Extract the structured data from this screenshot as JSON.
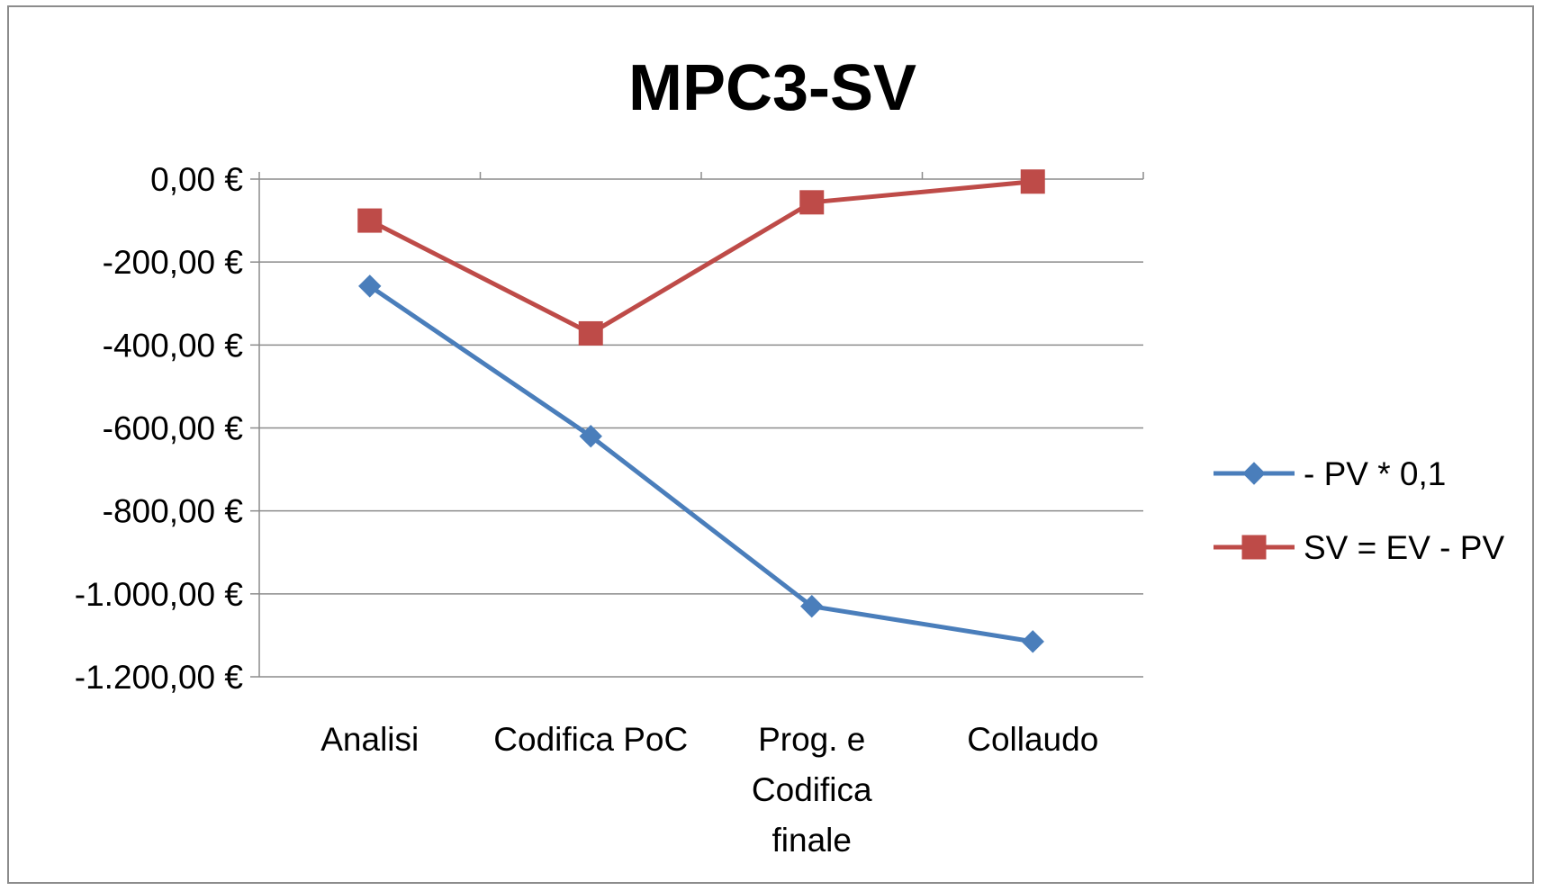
{
  "chart_data": {
    "type": "line",
    "title": "MPC3-SV",
    "xlabel": "",
    "ylabel": "",
    "categories": [
      [
        "Analisi"
      ],
      [
        "Codifica PoC"
      ],
      [
        "Prog. e",
        "Codifica",
        "finale"
      ],
      [
        "Collaudo"
      ]
    ],
    "ylim": [
      -1200,
      0
    ],
    "yticks": [
      0,
      -200,
      -400,
      -600,
      -800,
      -1000,
      -1200
    ],
    "ytick_labels": [
      "0,00 €",
      "-200,00 €",
      "-400,00 €",
      "-600,00 €",
      "-800,00 €",
      "-1.000,00 €",
      "-1.200,00 €"
    ],
    "grid": true,
    "legend_position": "right",
    "series": [
      {
        "name": "- PV * 0,1",
        "values": [
          -258,
          -620,
          -1030,
          -1115
        ],
        "color": "#4a7ebb",
        "marker": "diamond"
      },
      {
        "name": "SV = EV - PV",
        "values": [
          -100,
          -372,
          -56,
          -6
        ],
        "color": "#be4b48",
        "marker": "square"
      }
    ]
  }
}
